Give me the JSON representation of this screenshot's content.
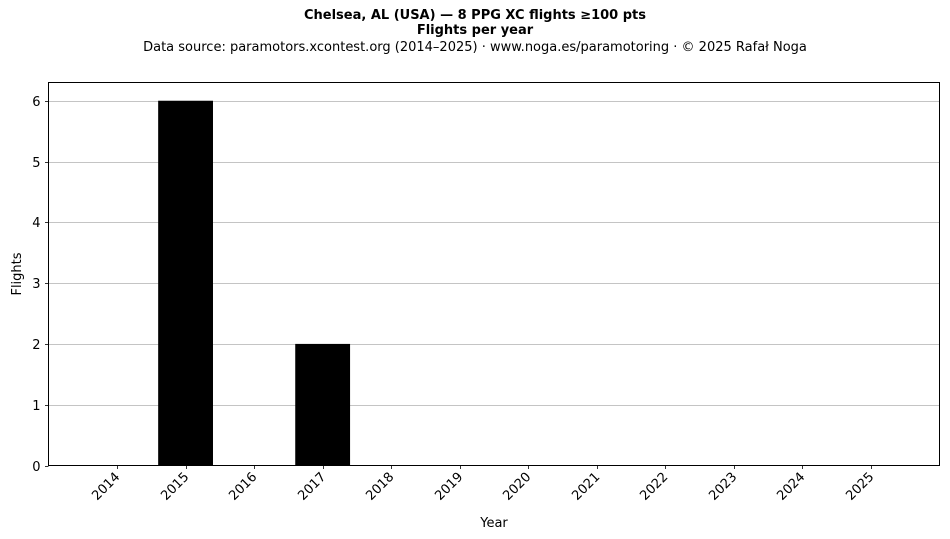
{
  "chart_data": {
    "type": "bar",
    "title": "Chelsea, AL (USA)  —  8 PPG XC flights ≥100 pts",
    "subtitle": "Flights per year",
    "source": "Data source: paramotors.xcontest.org (2014–2025)  ·  www.noga.es/paramotoring  ·  © 2025 Rafał Noga",
    "xlabel": "Year",
    "ylabel": "Flights",
    "categories": [
      "2014",
      "2015",
      "2016",
      "2017",
      "2018",
      "2019",
      "2020",
      "2021",
      "2022",
      "2023",
      "2024",
      "2025"
    ],
    "values": [
      0,
      6,
      0,
      2,
      0,
      0,
      0,
      0,
      0,
      0,
      0,
      0
    ],
    "ylim": [
      0,
      6.3
    ],
    "yticks": [
      0,
      1,
      2,
      3,
      4,
      5,
      6
    ],
    "grid": "y",
    "bar_color": "#000000",
    "grid_color": "#b0b0b0"
  }
}
